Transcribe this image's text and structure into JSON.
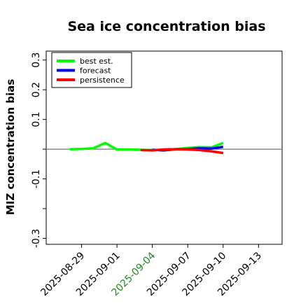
{
  "chart_data": {
    "type": "line",
    "title": "Sea ice concentration bias",
    "xlabel": "",
    "ylabel": "MIZ concentration bias",
    "xlim": [
      "2025-08-26",
      "2025-09-15"
    ],
    "ylim": [
      -0.32,
      0.33
    ],
    "yticks": [
      -0.3,
      -0.2,
      -0.1,
      0.0,
      0.1,
      0.2,
      0.3
    ],
    "ytick_labels": [
      "-0.3",
      "",
      "-0.1",
      "",
      "0.1",
      "0.2",
      "0.3"
    ],
    "xticks": [
      "2025-08-29",
      "2025-09-01",
      "2025-09-04",
      "2025-09-07",
      "2025-09-10",
      "2025-09-13"
    ],
    "xtick_colors": [
      "#000000",
      "#000000",
      "#228b22",
      "#000000",
      "#000000",
      "#000000"
    ],
    "zero_line": true,
    "grid": false,
    "legend_position": "top-left",
    "series": [
      {
        "name": "best est.",
        "color": "#00ff00",
        "x": [
          "2025-08-28",
          "2025-08-29",
          "2025-08-30",
          "2025-08-31",
          "2025-09-01",
          "2025-09-02",
          "2025-09-03",
          "2025-09-04",
          "2025-09-05",
          "2025-09-06",
          "2025-09-07",
          "2025-09-08",
          "2025-09-09",
          "2025-09-10"
        ],
        "values": [
          0.0,
          0.001,
          0.003,
          0.021,
          -0.001,
          -0.001,
          -0.002,
          -0.003,
          -0.002,
          0.0,
          0.004,
          0.007,
          0.006,
          0.021
        ]
      },
      {
        "name": "forecast",
        "color": "#0000ff",
        "x": [
          "2025-09-04",
          "2025-09-05",
          "2025-09-06",
          "2025-09-07",
          "2025-09-08",
          "2025-09-09",
          "2025-09-10"
        ],
        "values": [
          -0.002,
          -0.004,
          0.0,
          0.0,
          0.003,
          0.002,
          0.008
        ]
      },
      {
        "name": "persistence",
        "color": "#ff0000",
        "x": [
          "2025-09-03",
          "2025-09-04",
          "2025-09-05",
          "2025-09-06",
          "2025-09-07",
          "2025-09-08",
          "2025-09-09",
          "2025-09-10"
        ],
        "values": [
          -0.003,
          -0.004,
          -0.001,
          0.0,
          -0.001,
          -0.003,
          -0.007,
          -0.013
        ]
      }
    ]
  }
}
